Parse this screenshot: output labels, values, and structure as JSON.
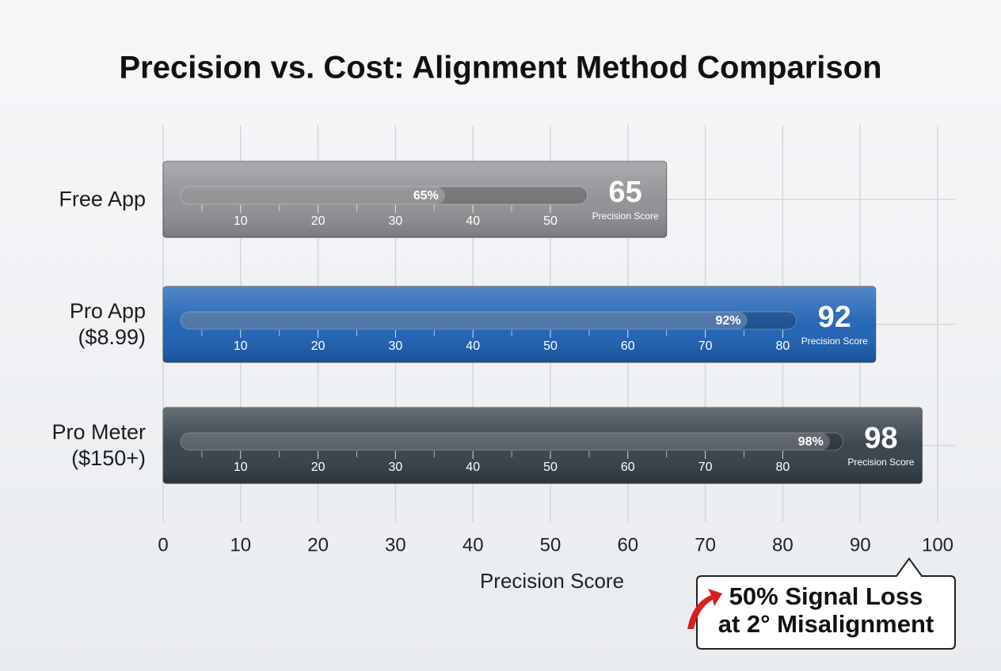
{
  "chart_data": {
    "type": "barh",
    "title": "Precision vs. Cost: Alignment Method Comparison",
    "categories": [
      "Free App",
      "Pro App ($8.99)",
      "Pro Meter ($150+)"
    ],
    "values": [
      65,
      92,
      98
    ],
    "value_labels": [
      "65%",
      "92%",
      "98%"
    ],
    "colors": [
      "#8d8f92",
      "#1b5fb3",
      "#323d47"
    ],
    "xlabel": "Precision Score",
    "xlim": [
      0,
      100
    ],
    "xticks": [
      0,
      10,
      20,
      30,
      40,
      50,
      60,
      70,
      80,
      90,
      100
    ],
    "grid": true,
    "annotation": [
      "50% Signal Loss",
      "at 2° Misalignment"
    ]
  }
}
